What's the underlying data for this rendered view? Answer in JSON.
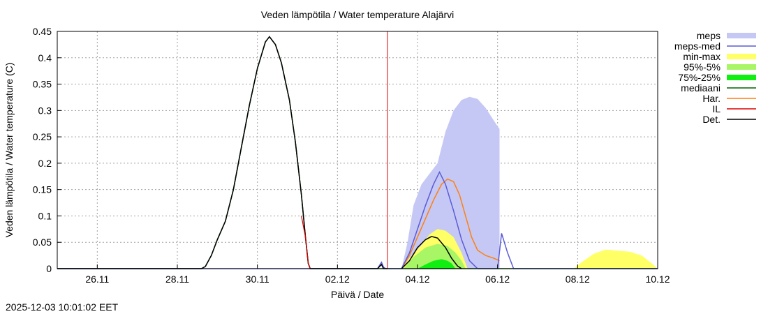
{
  "chart_data": {
    "type": "area",
    "title": "Veden lämpötila / Water temperature Alajärvi",
    "xlabel": "Päivä / Date",
    "ylabel": "Veden lämpötila / Water temperature (C)",
    "timestamp": "2025-12-03 10:01:02 EET",
    "x_unit": "days since 2025-11-25 00:00",
    "xlim": [
      0,
      15
    ],
    "ylim": [
      0,
      0.45
    ],
    "x_ticks": [
      {
        "label": "26.11",
        "x": 1
      },
      {
        "label": "28.11",
        "x": 3
      },
      {
        "label": "30.11",
        "x": 5
      },
      {
        "label": "02.12",
        "x": 7
      },
      {
        "label": "04.12",
        "x": 9
      },
      {
        "label": "06.12",
        "x": 11
      },
      {
        "label": "08.12",
        "x": 13
      },
      {
        "label": "10.12",
        "x": 15
      }
    ],
    "y_ticks": [
      {
        "label": "0",
        "y": 0
      },
      {
        "label": "0.05",
        "y": 0.05
      },
      {
        "label": "0.1",
        "y": 0.1
      },
      {
        "label": "0.15",
        "y": 0.15
      },
      {
        "label": "0.2",
        "y": 0.2
      },
      {
        "label": "0.25",
        "y": 0.25
      },
      {
        "label": "0.3",
        "y": 0.3
      },
      {
        "label": "0.35",
        "y": 0.35
      },
      {
        "label": "0.4",
        "y": 0.4
      },
      {
        "label": "0.45",
        "y": 0.45
      }
    ],
    "colors": {
      "meps": "#c5c8f5",
      "meps_med": "#5b5bd6",
      "minmax": "#ffff66",
      "p95_5": "#a8f566",
      "p75_25": "#11ee11",
      "mediaani": "#006400",
      "har": "#ff7f0e",
      "il": "#dd0000",
      "det": "#000000"
    },
    "legend": {
      "position": "top-right",
      "entries": [
        {
          "label": "meps",
          "key": "meps",
          "style": "band"
        },
        {
          "label": "meps-med",
          "key": "meps_med",
          "style": "line"
        },
        {
          "label": "min-max",
          "key": "minmax",
          "style": "band"
        },
        {
          "label": "95%-5%",
          "key": "p95_5",
          "style": "band"
        },
        {
          "label": "75%-25%",
          "key": "p75_25",
          "style": "band"
        },
        {
          "label": "mediaani",
          "key": "mediaani",
          "style": "line"
        },
        {
          "label": "Har.",
          "key": "har",
          "style": "line"
        },
        {
          "label": "IL",
          "key": "il",
          "style": "line"
        },
        {
          "label": "Det.",
          "key": "det",
          "style": "line"
        }
      ]
    },
    "series": {
      "meps_band": [
        [
          8.6,
          0
        ],
        [
          8.75,
          0.05
        ],
        [
          8.9,
          0.12
        ],
        [
          9.1,
          0.16
        ],
        [
          9.3,
          0.18
        ],
        [
          9.5,
          0.2
        ],
        [
          9.7,
          0.26
        ],
        [
          9.9,
          0.3
        ],
        [
          10.1,
          0.32
        ],
        [
          10.3,
          0.326
        ],
        [
          10.5,
          0.322
        ],
        [
          10.7,
          0.305
        ],
        [
          11.0,
          0.27
        ],
        [
          11.05,
          0.265
        ],
        [
          11.05,
          0
        ]
      ],
      "meps_med": [
        [
          0,
          0
        ],
        [
          8.0,
          0
        ],
        [
          8.1,
          0.012
        ],
        [
          8.15,
          0.003
        ],
        [
          8.2,
          0
        ],
        [
          8.6,
          0
        ],
        [
          8.8,
          0.03
        ],
        [
          9.0,
          0.075
        ],
        [
          9.2,
          0.12
        ],
        [
          9.4,
          0.16
        ],
        [
          9.55,
          0.183
        ],
        [
          9.7,
          0.16
        ],
        [
          9.9,
          0.11
        ],
        [
          10.1,
          0.055
        ],
        [
          10.3,
          0.015
        ],
        [
          10.5,
          0
        ],
        [
          11.0,
          0
        ],
        [
          11.1,
          0.067
        ],
        [
          11.25,
          0.03
        ],
        [
          11.4,
          0
        ],
        [
          15,
          0
        ]
      ],
      "minmax_band": [
        [
          8.6,
          0
        ],
        [
          8.8,
          0.02
        ],
        [
          9.1,
          0.045
        ],
        [
          9.3,
          0.065
        ],
        [
          9.5,
          0.075
        ],
        [
          9.7,
          0.072
        ],
        [
          9.9,
          0.06
        ],
        [
          10.1,
          0.03
        ],
        [
          10.25,
          0
        ],
        [
          12.9,
          0
        ],
        [
          13.1,
          0.012
        ],
        [
          13.4,
          0.028
        ],
        [
          13.7,
          0.036
        ],
        [
          14.0,
          0.034
        ],
        [
          14.3,
          0.032
        ],
        [
          14.6,
          0.025
        ],
        [
          14.85,
          0.01
        ],
        [
          15,
          0
        ]
      ],
      "p95_band": [
        [
          8.65,
          0
        ],
        [
          8.9,
          0.022
        ],
        [
          9.2,
          0.04
        ],
        [
          9.5,
          0.047
        ],
        [
          9.75,
          0.043
        ],
        [
          9.95,
          0.03
        ],
        [
          10.1,
          0.015
        ],
        [
          10.2,
          0
        ]
      ],
      "p75_band": [
        [
          9.0,
          0
        ],
        [
          9.2,
          0.008
        ],
        [
          9.4,
          0.015
        ],
        [
          9.6,
          0.018
        ],
        [
          9.75,
          0.015
        ],
        [
          9.85,
          0.01
        ],
        [
          9.95,
          0
        ]
      ],
      "mediaani": [
        [
          0,
          0
        ],
        [
          3.6,
          0
        ],
        [
          3.7,
          0.004
        ],
        [
          3.85,
          0.025
        ],
        [
          4.0,
          0.055
        ],
        [
          4.2,
          0.09
        ],
        [
          4.4,
          0.15
        ],
        [
          4.6,
          0.23
        ],
        [
          4.8,
          0.31
        ],
        [
          5.0,
          0.38
        ],
        [
          5.2,
          0.43
        ],
        [
          5.3,
          0.44
        ],
        [
          5.45,
          0.425
        ],
        [
          5.6,
          0.39
        ],
        [
          5.8,
          0.32
        ],
        [
          5.95,
          0.24
        ],
        [
          6.1,
          0.14
        ],
        [
          6.2,
          0.06
        ],
        [
          6.27,
          0.01
        ],
        [
          6.32,
          0
        ],
        [
          15,
          0
        ]
      ],
      "har": [
        [
          8.6,
          0
        ],
        [
          8.8,
          0.025
        ],
        [
          9.0,
          0.06
        ],
        [
          9.2,
          0.095
        ],
        [
          9.4,
          0.13
        ],
        [
          9.6,
          0.16
        ],
        [
          9.75,
          0.17
        ],
        [
          9.9,
          0.165
        ],
        [
          10.05,
          0.14
        ],
        [
          10.2,
          0.1
        ],
        [
          10.35,
          0.06
        ],
        [
          10.5,
          0.035
        ],
        [
          10.7,
          0.025
        ],
        [
          10.9,
          0.02
        ],
        [
          11.05,
          0.015
        ]
      ],
      "il_x": 8.25,
      "det_obs": [
        [
          0,
          0
        ],
        [
          3.6,
          0
        ],
        [
          3.7,
          0.004
        ],
        [
          3.85,
          0.025
        ],
        [
          4.0,
          0.055
        ],
        [
          4.2,
          0.09
        ],
        [
          4.4,
          0.15
        ],
        [
          4.6,
          0.23
        ],
        [
          4.8,
          0.31
        ],
        [
          5.0,
          0.38
        ],
        [
          5.2,
          0.43
        ],
        [
          5.3,
          0.44
        ],
        [
          5.45,
          0.425
        ],
        [
          5.6,
          0.39
        ],
        [
          5.8,
          0.32
        ],
        [
          5.95,
          0.24
        ],
        [
          6.1,
          0.14
        ],
        [
          6.2,
          0.06
        ],
        [
          6.27,
          0.01
        ],
        [
          6.32,
          0
        ],
        [
          8.0,
          0
        ],
        [
          8.1,
          0.008
        ],
        [
          8.15,
          0
        ],
        [
          8.25,
          0
        ]
      ],
      "det_fc": [
        [
          8.6,
          0
        ],
        [
          8.8,
          0.015
        ],
        [
          9.0,
          0.04
        ],
        [
          9.2,
          0.055
        ],
        [
          9.35,
          0.061
        ],
        [
          9.5,
          0.058
        ],
        [
          9.7,
          0.04
        ],
        [
          9.85,
          0.02
        ],
        [
          10.0,
          0.005
        ],
        [
          10.1,
          0
        ]
      ]
    }
  }
}
